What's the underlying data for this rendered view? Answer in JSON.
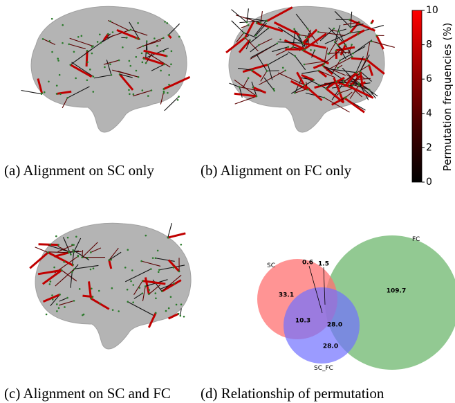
{
  "panels": [
    {
      "caption": "(a) Alignment on SC only"
    },
    {
      "caption": "(b) Alignment on FC only"
    },
    {
      "caption": "(c) Alignment on SC and FC"
    },
    {
      "caption": "(d) Relationship of permutation"
    }
  ],
  "colorbar": {
    "label": "Permutation frequencies (%)",
    "range": [
      0,
      10
    ],
    "ticks": [
      0,
      2,
      4,
      6,
      8,
      10
    ]
  },
  "venn": {
    "sets": [
      "SC",
      "FC",
      "SC_FC"
    ],
    "region_values": [
      "33.1",
      "10.3",
      "28.0",
      "28.0",
      "109.7",
      "0.6",
      "1.5"
    ]
  }
}
